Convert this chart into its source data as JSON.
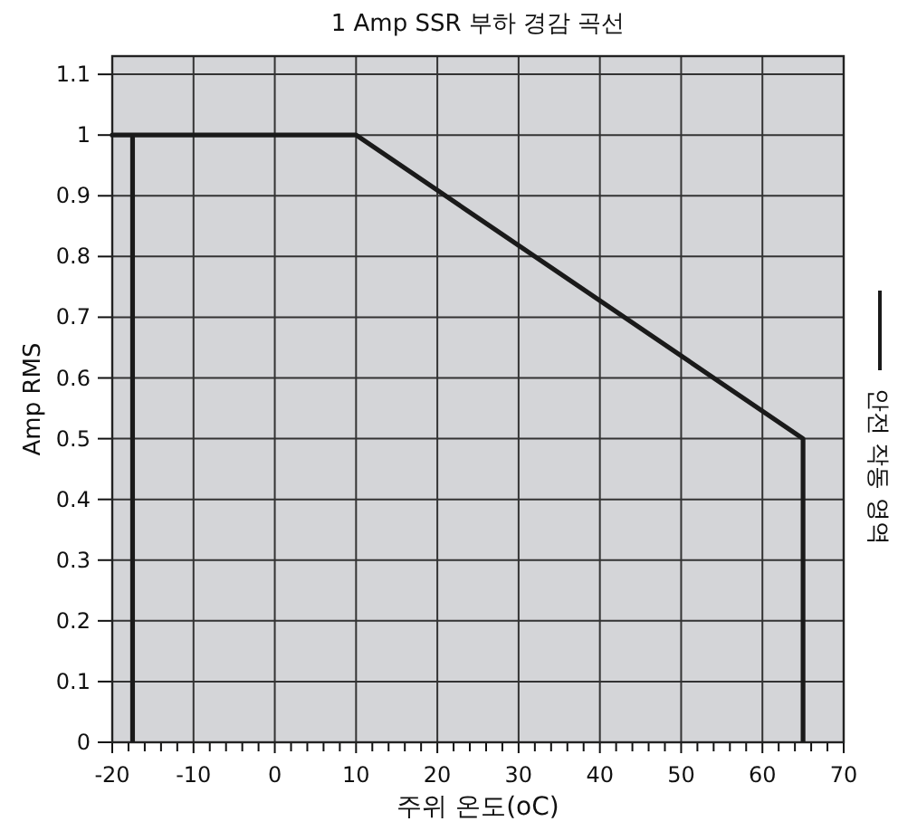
{
  "chart_data": {
    "type": "line",
    "title": "1 Amp SSR 부하 경감 곡선",
    "xlabel": "주위 온도(oC)",
    "ylabel": "Amp RMS",
    "series": [
      {
        "name": "안전 작동 영역",
        "color": "#1a1a1a",
        "x": [
          -17.5,
          -17.5,
          -20,
          10,
          65,
          65
        ],
        "values": [
          0,
          1,
          1,
          1,
          0.5,
          0
        ]
      }
    ],
    "xlim": [
      -20,
      70
    ],
    "ylim": [
      0,
      1.13
    ],
    "xticks": [
      -20,
      {
        "value": -18,
        "label": null
      },
      {
        "value": -16,
        "label": null
      },
      {
        "value": -14,
        "label": null
      },
      {
        "value": -12,
        "label": null
      },
      -10,
      {
        "value": -8,
        "label": null
      },
      {
        "value": -6,
        "label": null
      },
      {
        "value": -4,
        "label": null
      },
      {
        "value": -2,
        "label": null
      },
      0,
      {
        "value": 2,
        "label": null
      },
      {
        "value": 4,
        "label": null
      },
      {
        "value": 6,
        "label": null
      },
      {
        "value": 8,
        "label": null
      },
      10,
      {
        "value": 12,
        "label": null
      },
      {
        "value": 14,
        "label": null
      },
      {
        "value": 16,
        "label": null
      },
      {
        "value": 18,
        "label": null
      },
      20,
      {
        "value": 22,
        "label": null
      },
      {
        "value": 24,
        "label": null
      },
      {
        "value": 26,
        "label": null
      },
      {
        "value": 28,
        "label": null
      },
      30,
      {
        "value": 32,
        "label": null
      },
      {
        "value": 34,
        "label": null
      },
      {
        "value": 36,
        "label": null
      },
      {
        "value": 38,
        "label": null
      },
      40,
      {
        "value": 42,
        "label": null
      },
      {
        "value": 44,
        "label": null
      },
      {
        "value": 46,
        "label": null
      },
      {
        "value": 48,
        "label": null
      },
      50,
      {
        "value": 52,
        "label": null
      },
      {
        "value": 54,
        "label": null
      },
      {
        "value": 56,
        "label": null
      },
      {
        "value": 58,
        "label": null
      },
      60,
      {
        "value": 62,
        "label": null
      },
      {
        "value": 64,
        "label": null
      },
      {
        "value": 66,
        "label": null
      },
      {
        "value": 68,
        "label": null
      },
      70
    ],
    "yticks": [
      0,
      0.1,
      0.2,
      0.3,
      0.4,
      0.5,
      0.6,
      0.7,
      0.8,
      0.9,
      1,
      1.1
    ],
    "grid": true,
    "legend": "right",
    "marker": "none",
    "line_style": "solid"
  }
}
